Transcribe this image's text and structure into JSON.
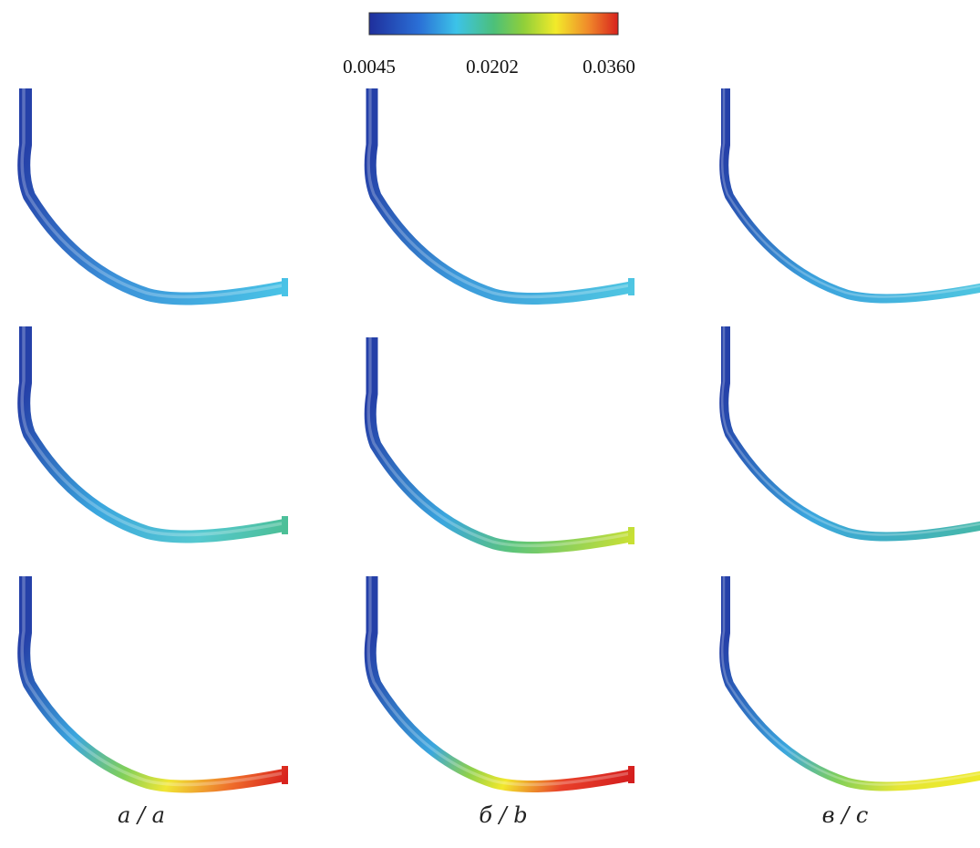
{
  "colorbar": {
    "ticks": [
      "0.0045",
      "0.0202",
      "0.0360"
    ]
  },
  "panels": [
    {
      "label": "а / a"
    },
    {
      "label": "б / b"
    },
    {
      "label": "в / c"
    }
  ]
}
